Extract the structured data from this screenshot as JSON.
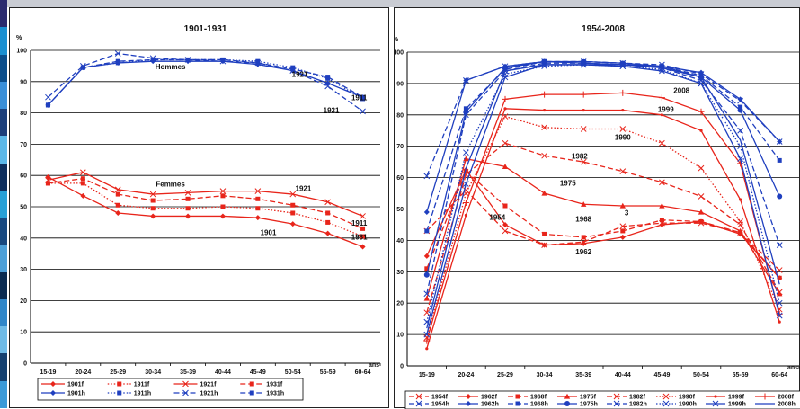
{
  "chart_data": [
    {
      "type": "line",
      "title": "1901-1931",
      "ylabel": "%",
      "xunit": "ans",
      "ylim": [
        0,
        100
      ],
      "yticks": [
        0,
        10,
        20,
        30,
        40,
        50,
        60,
        70,
        80,
        90,
        100
      ],
      "categories": [
        "15-19",
        "20-24",
        "25-29",
        "30-34",
        "35-39",
        "40-44",
        "45-49",
        "50-54",
        "55-59",
        "60-64"
      ],
      "grid": true,
      "legend_position": "bottom",
      "series": [
        {
          "name": "1901f",
          "color": "#e8251b",
          "dash": "solid",
          "marker": "diamond",
          "values": [
            59.5,
            53.5,
            48,
            47,
            47,
            47,
            46.5,
            44.5,
            41.5,
            37.2
          ]
        },
        {
          "name": "1911f",
          "color": "#e8251b",
          "dash": "dot",
          "marker": "square",
          "values": [
            57.5,
            57.5,
            50.5,
            49.5,
            49.5,
            50,
            49.5,
            48,
            45,
            40.5
          ]
        },
        {
          "name": "1921f",
          "color": "#e8251b",
          "dash": "solid",
          "marker": "cross",
          "values": [
            58.5,
            61,
            55.5,
            54,
            54.5,
            55,
            55,
            54,
            51.5,
            47
          ]
        },
        {
          "name": "1931f",
          "color": "#e8251b",
          "dash": "dash",
          "marker": "square",
          "values": [
            57.5,
            59,
            54,
            52,
            52.5,
            53.5,
            52.5,
            50.5,
            48,
            43
          ]
        },
        {
          "name": "1901h",
          "color": "#1f3fbf",
          "dash": "solid",
          "marker": "diamond",
          "values": [
            82.5,
            94.5,
            96,
            96.5,
            96.5,
            96.5,
            95.5,
            93.5,
            89.5,
            85
          ]
        },
        {
          "name": "1911h",
          "color": "#1f3fbf",
          "dash": "dot",
          "marker": "square",
          "values": [
            82.5,
            94.5,
            96,
            97,
            97,
            97,
            96.5,
            94.5,
            91,
            84.5
          ]
        },
        {
          "name": "1921h",
          "color": "#1f3fbf",
          "dash": "dash",
          "marker": "cross",
          "values": [
            85,
            95,
            99,
            97.5,
            97,
            96.5,
            96,
            93.5,
            88.5,
            80.5
          ]
        },
        {
          "name": "1931h",
          "color": "#1f3fbf",
          "dash": "dash",
          "marker": "square",
          "values": [
            82.5,
            94.5,
            96.5,
            97,
            97,
            97,
            96,
            94,
            91.5,
            85
          ]
        }
      ],
      "annotations": [
        {
          "text": "Hommes",
          "x": 4,
          "y": 94
        },
        {
          "text": "1921",
          "x": 7.7,
          "y": 91.5
        },
        {
          "text": "1911",
          "x": 9.4,
          "y": 84
        },
        {
          "text": "1931",
          "x": 8.6,
          "y": 80
        },
        {
          "text": "Femmes",
          "x": 4,
          "y": 56.5
        },
        {
          "text": "1921",
          "x": 7.8,
          "y": 55
        },
        {
          "text": "1911",
          "x": 9.4,
          "y": 44
        },
        {
          "text": "1931",
          "x": 9.4,
          "y": 39.5
        },
        {
          "text": "1901",
          "x": 6.8,
          "y": 41
        }
      ]
    },
    {
      "type": "line",
      "title": "1954-2008",
      "ylabel": "%",
      "xunit": "ans",
      "ylim": [
        0,
        100
      ],
      "yticks": [
        0,
        10,
        20,
        30,
        40,
        50,
        60,
        70,
        80,
        90,
        100
      ],
      "categories": [
        "15-19",
        "20-24",
        "25-29",
        "30-34",
        "35-39",
        "40-44",
        "45-49",
        "50-54",
        "55-59",
        "60-64"
      ],
      "grid": true,
      "legend_position": "bottom",
      "series": [
        {
          "name": "1954f",
          "color": "#e8251b",
          "dash": "dash",
          "marker": "x",
          "values": [
            43,
            56,
            43,
            38.5,
            39.5,
            44.5,
            45.5,
            45.5,
            42.5,
            30.5
          ]
        },
        {
          "name": "1962f",
          "color": "#e8251b",
          "dash": "solid",
          "marker": "diamond",
          "values": [
            35,
            62.5,
            45,
            38.5,
            39,
            41,
            45,
            46,
            42,
            28
          ]
        },
        {
          "name": "1968f",
          "color": "#e8251b",
          "dash": "dash",
          "marker": "square",
          "values": [
            31,
            62,
            51,
            42,
            41,
            43,
            46.5,
            46,
            42.5,
            28
          ]
        },
        {
          "name": "1975f",
          "color": "#e8251b",
          "dash": "solid",
          "marker": "triangle",
          "values": [
            21.5,
            66,
            63.5,
            55,
            51.5,
            51,
            51,
            49,
            43,
            23
          ]
        },
        {
          "name": "1982f",
          "color": "#e8251b",
          "dash": "dash",
          "marker": "x",
          "values": [
            17,
            61,
            71,
            67,
            65,
            62,
            58.5,
            54,
            45,
            23.5
          ]
        },
        {
          "name": "1990f",
          "color": "#e8251b",
          "dash": "dot",
          "marker": "x",
          "values": [
            9,
            55,
            79.5,
            76,
            75.5,
            75.5,
            71,
            63,
            46,
            18
          ]
        },
        {
          "name": "1999f",
          "color": "#e8251b",
          "dash": "solid",
          "marker": "dot",
          "values": [
            5.5,
            48,
            82,
            81.5,
            81.5,
            81.5,
            80,
            75,
            53,
            14
          ]
        },
        {
          "name": "2008f",
          "color": "#e8251b",
          "dash": "solid",
          "marker": "plus",
          "values": [
            8,
            52,
            85,
            86.5,
            86.5,
            87,
            85.5,
            81,
            64.5,
            16.5
          ]
        },
        {
          "name": "1954h",
          "color": "#1f3fbf",
          "dash": "dash",
          "marker": "x",
          "values": [
            60.5,
            91,
            95.5,
            97,
            97,
            96.5,
            96,
            93,
            84.5,
            71.5
          ]
        },
        {
          "name": "1962h",
          "color": "#1f3fbf",
          "dash": "solid",
          "marker": "diamond",
          "values": [
            49,
            91,
            95.5,
            97,
            97,
            96.5,
            95.5,
            93.5,
            85,
            71.5
          ]
        },
        {
          "name": "1968h",
          "color": "#1f3fbf",
          "dash": "dash",
          "marker": "square",
          "values": [
            43,
            82,
            94.5,
            97,
            97,
            96.5,
            95.5,
            92.5,
            82.5,
            65.5
          ]
        },
        {
          "name": "1975h",
          "color": "#1f3fbf",
          "dash": "solid",
          "marker": "circle",
          "values": [
            29,
            81,
            95,
            97,
            96.5,
            96,
            95.5,
            92,
            81.5,
            54
          ]
        },
        {
          "name": "1982h",
          "color": "#1f3fbf",
          "dash": "dash",
          "marker": "x",
          "values": [
            23,
            80,
            94,
            96.5,
            96.5,
            96,
            95,
            91,
            75,
            38.5
          ]
        },
        {
          "name": "1990h",
          "color": "#1f3fbf",
          "dash": "dot",
          "marker": "x",
          "values": [
            14,
            68,
            93,
            95.5,
            96,
            95.5,
            94.5,
            90,
            70,
            20
          ]
        },
        {
          "name": "1999h",
          "color": "#1f3fbf",
          "dash": "solid",
          "marker": "x",
          "values": [
            10,
            58,
            92,
            96,
            96,
            95.5,
            94,
            90,
            66,
            16
          ]
        },
        {
          "name": "2008h",
          "color": "#1f3fbf",
          "dash": "solid",
          "marker": "none",
          "values": [
            12,
            63,
            94,
            96,
            96,
            96,
            95,
            92,
            72,
            26
          ]
        }
      ],
      "annotations": [
        {
          "text": "2008",
          "x": 7,
          "y": 87
        },
        {
          "text": "1999",
          "x": 6.6,
          "y": 81
        },
        {
          "text": "1990",
          "x": 5.5,
          "y": 72
        },
        {
          "text": "1982",
          "x": 4.4,
          "y": 66
        },
        {
          "text": "1975",
          "x": 4.1,
          "y": 57.5
        },
        {
          "text": "1954",
          "x": 2.3,
          "y": 46.5
        },
        {
          "text": "1968",
          "x": 4.5,
          "y": 46
        },
        {
          "text": "3",
          "x": 5.6,
          "y": 48
        },
        {
          "text": "1962",
          "x": 4.5,
          "y": 35.5
        }
      ]
    }
  ]
}
